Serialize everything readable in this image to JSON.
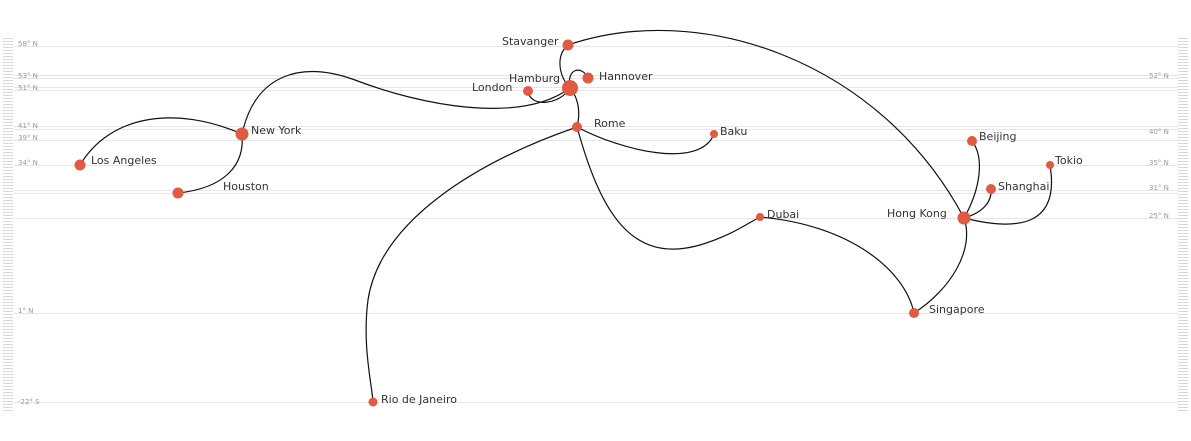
{
  "colors": {
    "node": "#e05a44",
    "link": "#111111",
    "grid": "#e6e6e6",
    "ticks": "#d9d9d9",
    "label": "#333333"
  },
  "latitudes": {
    "left": [
      {
        "id": "58n",
        "label": "58° N"
      },
      {
        "id": "53n",
        "label": "53° N"
      },
      {
        "id": "51n",
        "label": "51° N"
      },
      {
        "id": "41n",
        "label": "41° N"
      },
      {
        "id": "39n",
        "label": "39° N"
      },
      {
        "id": "34n",
        "label": "34° N"
      },
      {
        "id": "1n",
        "label": "1° N"
      },
      {
        "id": "22s",
        "label": "-22° S"
      }
    ],
    "right": [
      {
        "id": "52n",
        "label": "52° N"
      },
      {
        "id": "40n",
        "label": "40° N"
      },
      {
        "id": "35n",
        "label": "35° N"
      },
      {
        "id": "31n",
        "label": "31° N"
      },
      {
        "id": "25n",
        "label": "25° N"
      }
    ]
  },
  "cities": [
    {
      "id": "stavanger",
      "label": "Stavanger"
    },
    {
      "id": "hamburg",
      "label": "Hamburg"
    },
    {
      "id": "hannover",
      "label": "Hannover"
    },
    {
      "id": "london",
      "label": "London"
    },
    {
      "id": "rome",
      "label": "Rome"
    },
    {
      "id": "baku",
      "label": "Baku"
    },
    {
      "id": "new-york",
      "label": "New York"
    },
    {
      "id": "los-angeles",
      "label": "Los Angeles"
    },
    {
      "id": "houston",
      "label": "Houston"
    },
    {
      "id": "dubai",
      "label": "Dubai"
    },
    {
      "id": "beijing",
      "label": "Beijing"
    },
    {
      "id": "tokio",
      "label": "Tokio"
    },
    {
      "id": "shanghai",
      "label": "Shanghai"
    },
    {
      "id": "hong-kong",
      "label": "Hong Kong"
    },
    {
      "id": "singapore",
      "label": "Singapore"
    },
    {
      "id": "rio-de-janeiro",
      "label": "Rio de Janeiro"
    }
  ],
  "links": [
    {
      "from": "new-york",
      "to": "los-angeles"
    },
    {
      "from": "new-york",
      "to": "houston"
    },
    {
      "from": "new-york",
      "to": "hamburg"
    },
    {
      "from": "hamburg",
      "to": "london"
    },
    {
      "from": "hamburg",
      "to": "hannover"
    },
    {
      "from": "hamburg",
      "to": "stavanger"
    },
    {
      "from": "hamburg",
      "to": "rome"
    },
    {
      "from": "rome",
      "to": "baku"
    },
    {
      "from": "rome",
      "to": "dubai"
    },
    {
      "from": "rome",
      "to": "rio-de-janeiro"
    },
    {
      "from": "stavanger",
      "to": "hong-kong"
    },
    {
      "from": "dubai",
      "to": "singapore"
    },
    {
      "from": "hong-kong",
      "to": "singapore"
    },
    {
      "from": "hong-kong",
      "to": "beijing"
    },
    {
      "from": "hong-kong",
      "to": "shanghai"
    },
    {
      "from": "hong-kong",
      "to": "tokio"
    }
  ]
}
